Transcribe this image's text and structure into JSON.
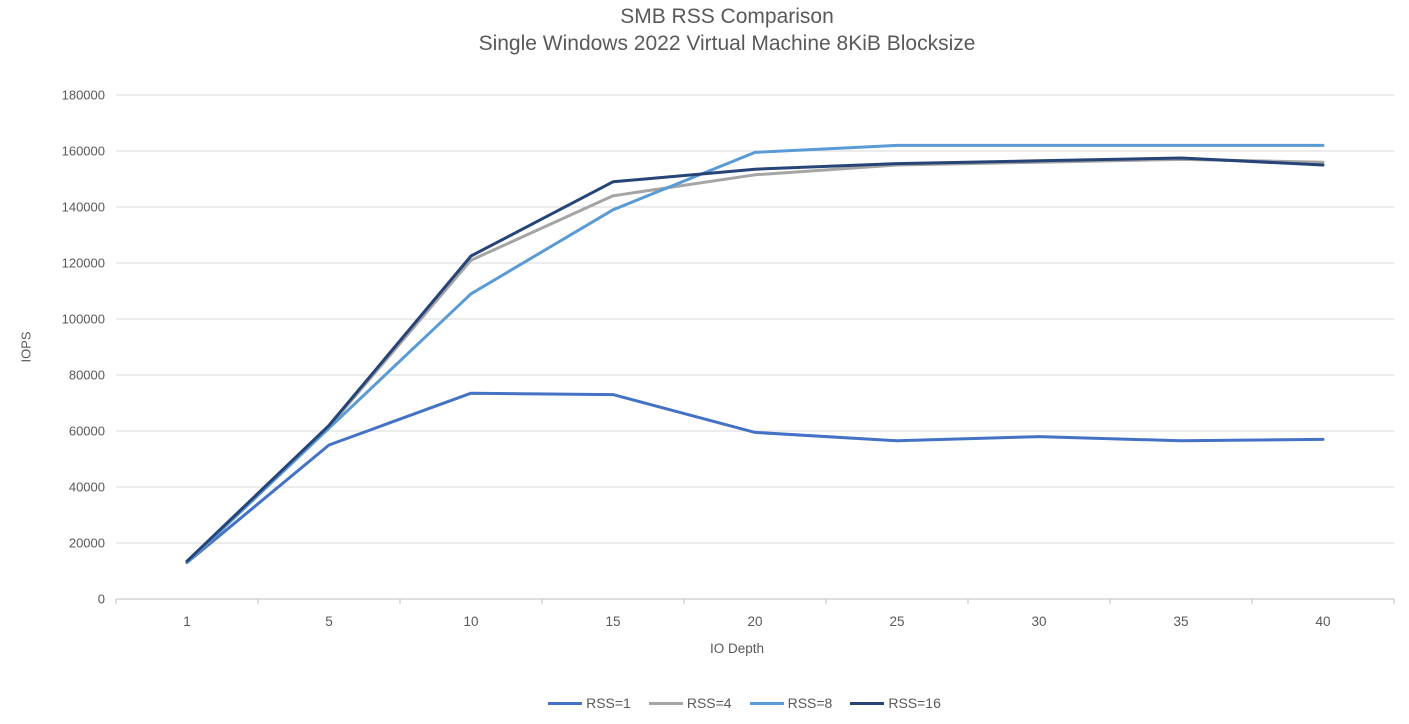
{
  "colors": {
    "background": "#FFFFFF",
    "text": "#595959",
    "gridline": "#D9D9D9",
    "axis_line": "#BFBFBF"
  },
  "chart_data": {
    "type": "line",
    "title": "SMB RSS Comparison",
    "subtitle": "Single Windows 2022 Virtual Machine 8KiB Blocksize",
    "xlabel": "IO Depth",
    "ylabel": "IOPS",
    "categories": [
      1,
      5,
      10,
      15,
      20,
      25,
      30,
      35,
      40
    ],
    "ylim": [
      0,
      180000
    ],
    "ytick_step": 20000,
    "ytick_labels": [
      "0",
      "20000",
      "40000",
      "60000",
      "80000",
      "100000",
      "120000",
      "140000",
      "160000",
      "180000"
    ],
    "grid": true,
    "legend_position": "bottom",
    "series": [
      {
        "name": "RSS=1",
        "color": "#4472C4",
        "values": [
          13000,
          55000,
          73500,
          73000,
          59500,
          56500,
          58000,
          56500,
          57000
        ]
      },
      {
        "name": "RSS=4",
        "color": "#A5A5A5",
        "values": [
          13000,
          61500,
          121000,
          144000,
          151500,
          155000,
          156000,
          157000,
          156000
        ]
      },
      {
        "name": "RSS=8",
        "color": "#5B9BD5",
        "values": [
          13000,
          61000,
          109000,
          139000,
          159500,
          162000,
          162000,
          162000,
          162000
        ]
      },
      {
        "name": "RSS=16",
        "color": "#264478",
        "values": [
          13500,
          62000,
          122500,
          149000,
          153500,
          155500,
          156500,
          157500,
          155000
        ]
      }
    ]
  }
}
